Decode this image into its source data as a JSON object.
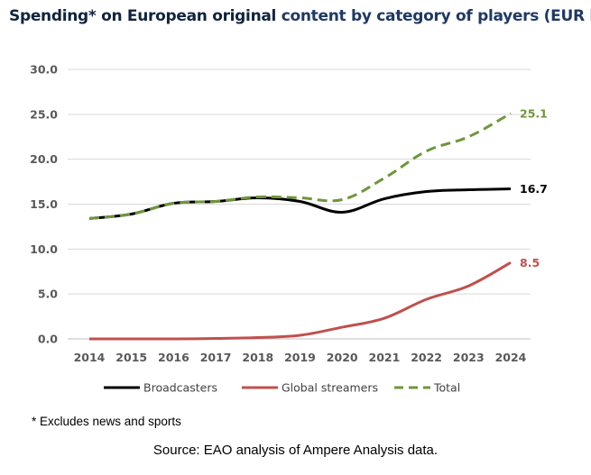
{
  "title": {
    "part1": "Spending* on European original",
    "part2": "content by category of players (EUR bn)"
  },
  "footnote": "* Excludes news and sports",
  "source": "Source: EAO analysis of Ampere Analysis data.",
  "chart_data": {
    "type": "line",
    "title": "Spending* on European original content by category of players (EUR bn)",
    "xlabel": "",
    "ylabel": "",
    "categories": [
      "2014",
      "2015",
      "2016",
      "2017",
      "2018",
      "2019",
      "2020",
      "2021",
      "2022",
      "2023",
      "2024"
    ],
    "ylim": [
      0,
      30
    ],
    "yticks": [
      "0.0",
      "5.0",
      "10.0",
      "15.0",
      "20.0",
      "25.0",
      "30.0"
    ],
    "grid": true,
    "legend_position": "bottom",
    "series": [
      {
        "name": "Broadcasters",
        "color": "#000000",
        "dash": "solid",
        "values": [
          13.4,
          13.9,
          15.1,
          15.3,
          15.7,
          15.3,
          14.1,
          15.6,
          16.4,
          16.6,
          16.7
        ],
        "end_label": "16.7"
      },
      {
        "name": "Global streamers",
        "color": "#c0504d",
        "dash": "solid",
        "values": [
          0.0,
          0.0,
          0.0,
          0.05,
          0.15,
          0.4,
          1.3,
          2.3,
          4.4,
          5.9,
          8.5
        ],
        "end_label": "8.5"
      },
      {
        "name": "Total",
        "color": "#70963d",
        "dash": "dashed",
        "values": [
          13.4,
          13.9,
          15.1,
          15.3,
          15.8,
          15.7,
          15.5,
          17.9,
          20.9,
          22.5,
          25.1
        ],
        "end_label": "25.1"
      }
    ]
  }
}
